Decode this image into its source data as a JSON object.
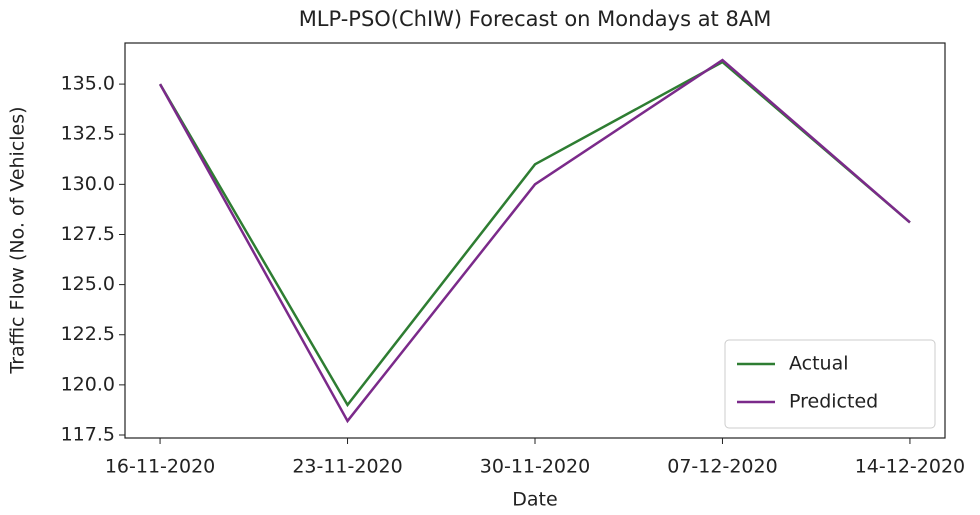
{
  "chart_data": {
    "type": "line",
    "title": "MLP-PSO(ChIW) Forecast on Mondays at 8AM",
    "x_label": "Date",
    "y_label": "Traffic Flow (No. of Vehicles)",
    "categories": [
      "16-11-2020",
      "23-11-2020",
      "30-11-2020",
      "07-12-2020",
      "14-12-2020"
    ],
    "series": [
      {
        "name": "Actual",
        "color": "#2e7d32",
        "values": [
          135.0,
          119.0,
          131.0,
          136.1,
          128.1
        ]
      },
      {
        "name": "Predicted",
        "color": "#7b2a8a",
        "values": [
          135.0,
          118.2,
          130.0,
          136.2,
          128.1
        ]
      }
    ],
    "ylim": [
      117.35,
      137.05
    ],
    "yticks": [
      {
        "value": 117.5,
        "label": "117.5"
      },
      {
        "value": 120,
        "label": "120.0"
      },
      {
        "value": 122.5,
        "label": "122.5"
      },
      {
        "value": 125,
        "label": "125.0"
      },
      {
        "value": 127.5,
        "label": "127.5"
      },
      {
        "value": 130,
        "label": "130.0"
      },
      {
        "value": 132.5,
        "label": "132.5"
      },
      {
        "value": 135,
        "label": "135.0"
      }
    ],
    "legend": "lower right",
    "grid": false
  }
}
